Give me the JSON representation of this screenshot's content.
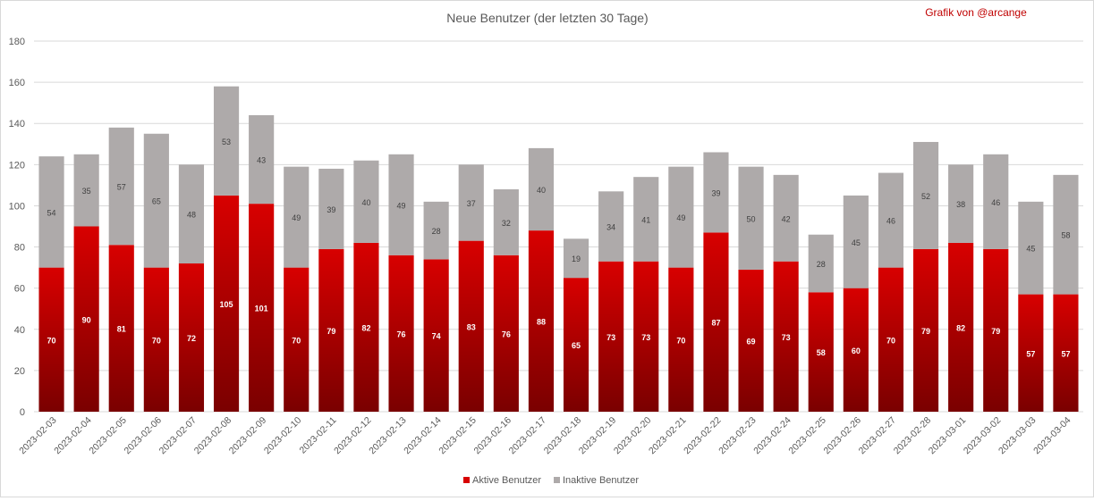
{
  "credit": "Grafik von @arcange",
  "colors": {
    "active_top": "#d80000",
    "active_bottom": "#7a0000",
    "inactive": "#aeaaaa",
    "grid": "#d9d9d9",
    "axis_text": "#595959",
    "credit": "#c00000"
  },
  "chart_data": {
    "type": "bar",
    "stacked": true,
    "title": "Neue Benutzer (der letzten 30 Tage)",
    "xlabel": "",
    "ylabel": "",
    "ylim": [
      0,
      180
    ],
    "yticks": [
      0,
      20,
      40,
      60,
      80,
      100,
      120,
      140,
      160,
      180
    ],
    "grid": true,
    "legend_position": "bottom",
    "categories": [
      "2023-02-03",
      "2023-02-04",
      "2023-02-05",
      "2023-02-06",
      "2023-02-07",
      "2023-02-08",
      "2023-02-09",
      "2023-02-10",
      "2023-02-11",
      "2023-02-12",
      "2023-02-13",
      "2023-02-14",
      "2023-02-15",
      "2023-02-16",
      "2023-02-17",
      "2023-02-18",
      "2023-02-19",
      "2023-02-20",
      "2023-02-21",
      "2023-02-22",
      "2023-02-23",
      "2023-02-24",
      "2023-02-25",
      "2023-02-26",
      "2023-02-27",
      "2023-02-28",
      "2023-03-01",
      "2023-03-02",
      "2023-03-03",
      "2023-03-04"
    ],
    "series": [
      {
        "name": "Aktive Benutzer",
        "values": [
          70,
          90,
          81,
          70,
          72,
          105,
          101,
          70,
          79,
          82,
          76,
          74,
          83,
          76,
          88,
          65,
          73,
          73,
          70,
          87,
          69,
          73,
          58,
          60,
          70,
          79,
          82,
          79,
          57,
          57
        ]
      },
      {
        "name": "Inaktive Benutzer",
        "values": [
          54,
          35,
          57,
          65,
          48,
          53,
          43,
          49,
          39,
          40,
          49,
          28,
          37,
          32,
          40,
          19,
          34,
          41,
          49,
          39,
          50,
          42,
          28,
          45,
          46,
          52,
          38,
          46,
          45,
          58
        ]
      }
    ]
  }
}
